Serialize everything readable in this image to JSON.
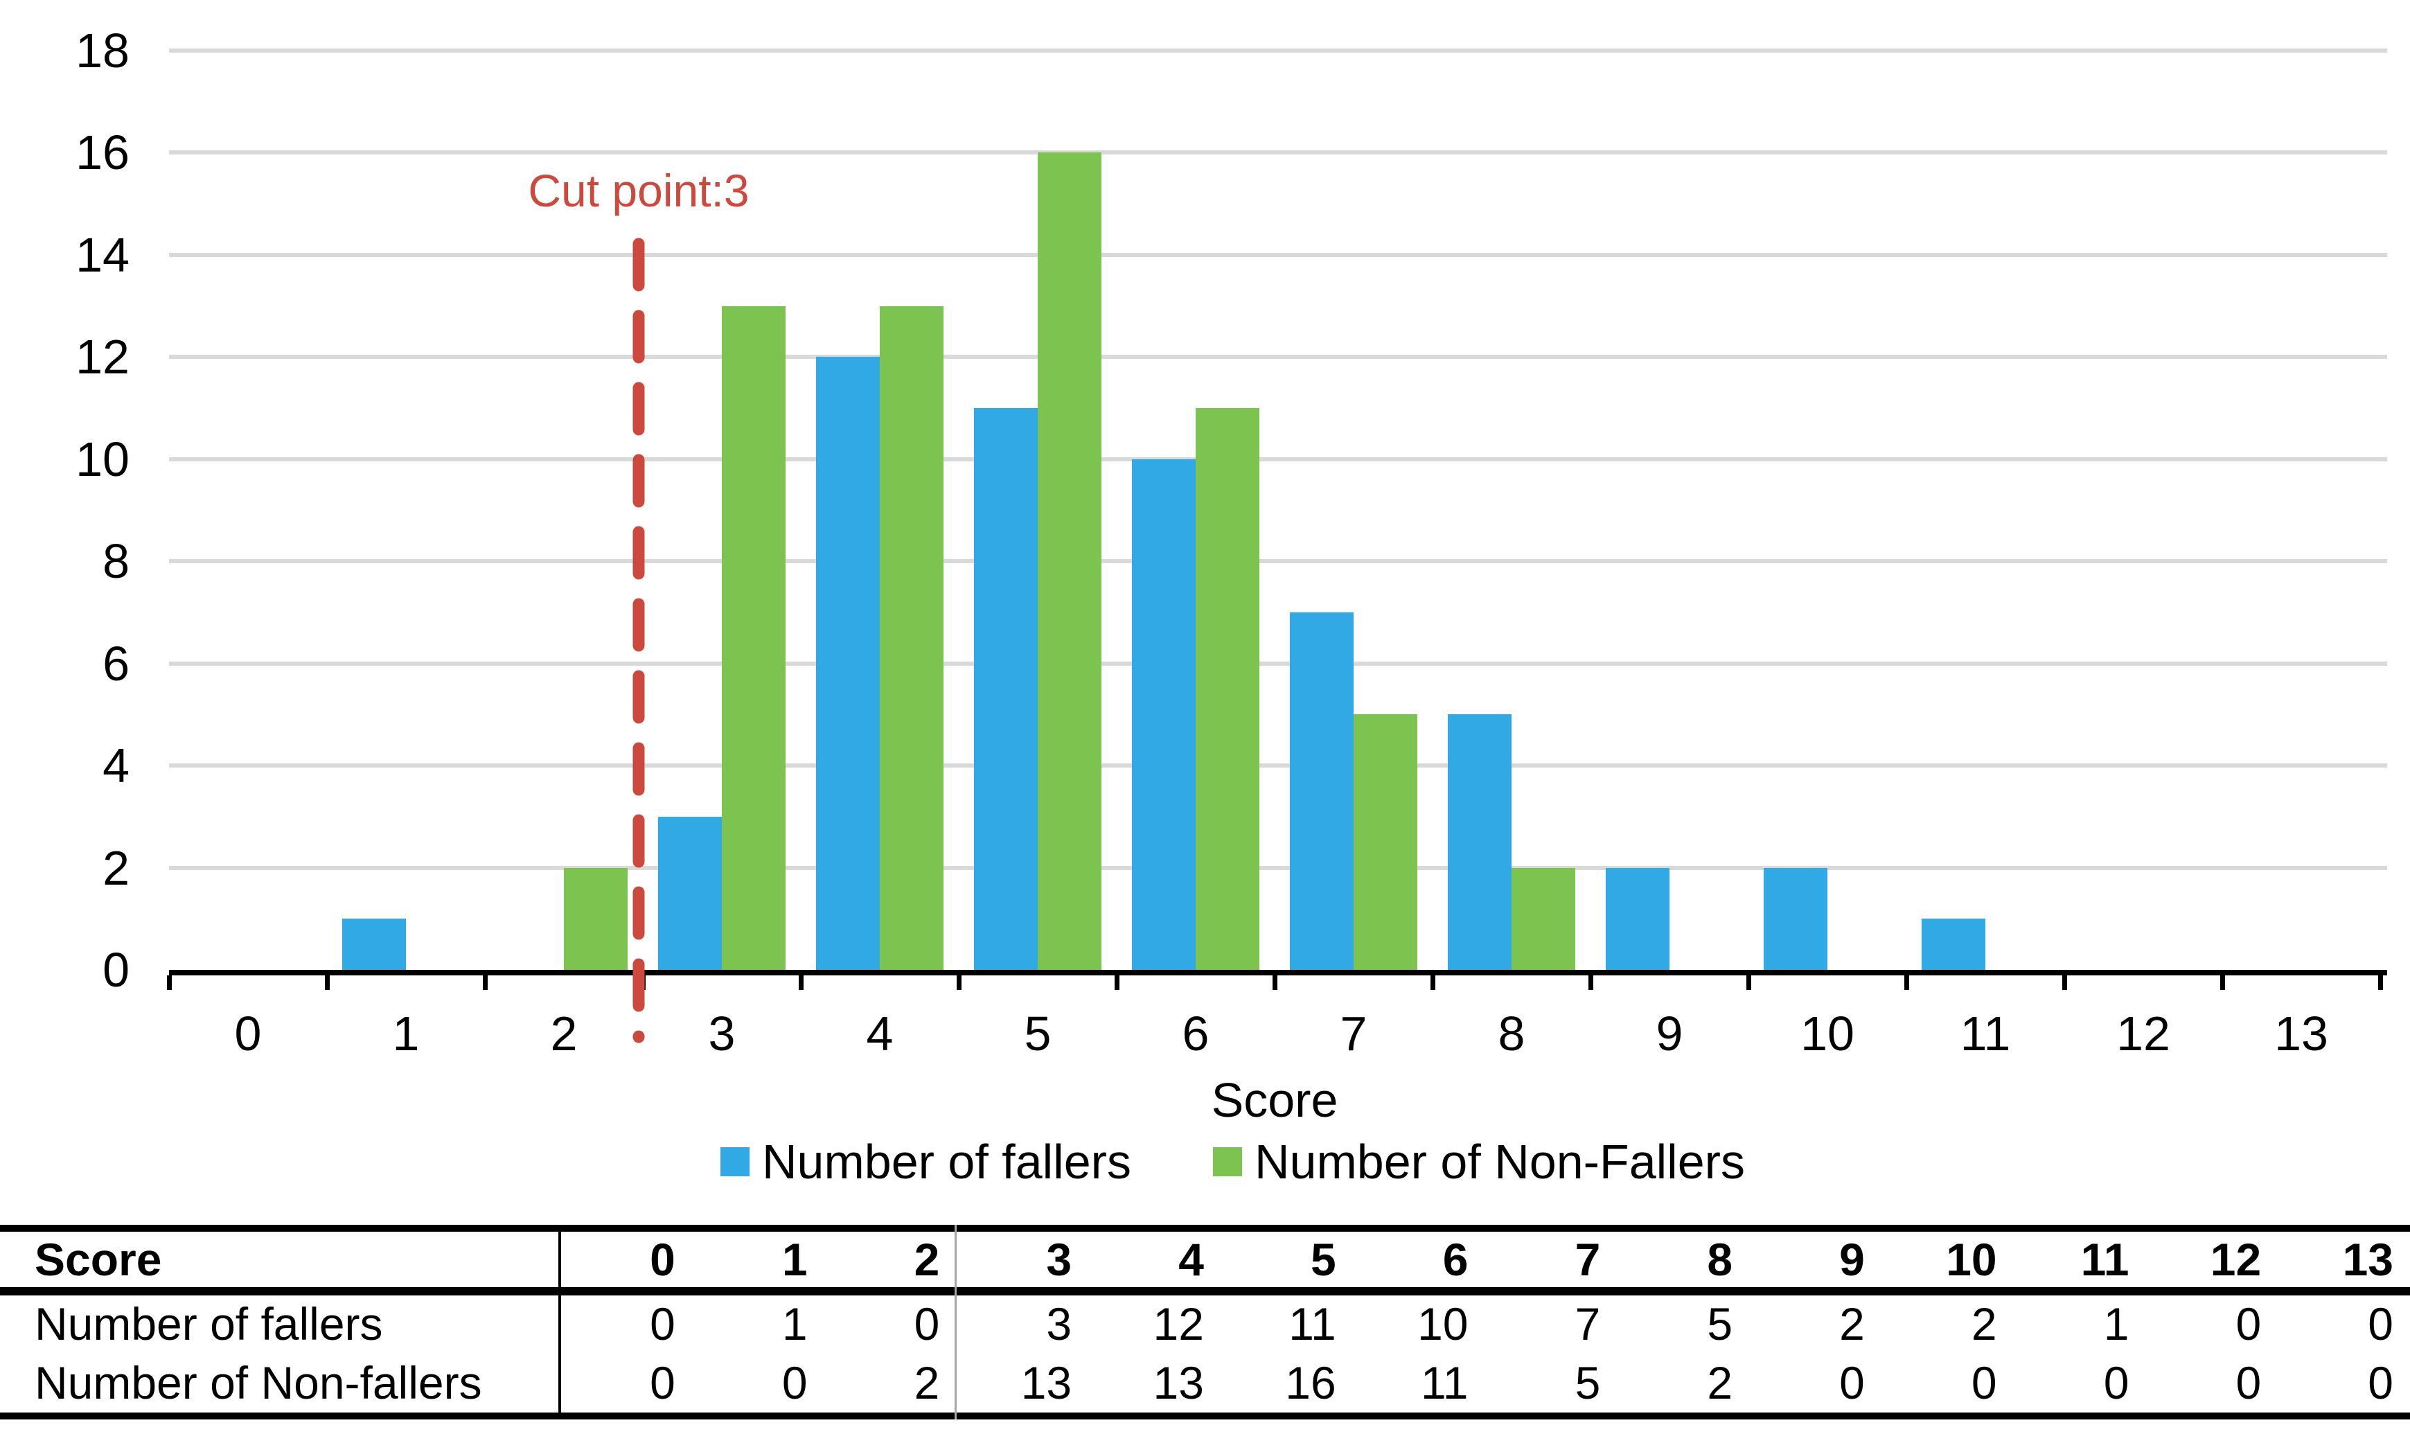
{
  "chart_data": {
    "type": "bar",
    "title": "",
    "categories": [
      "0",
      "1",
      "2",
      "3",
      "4",
      "5",
      "6",
      "7",
      "8",
      "9",
      "10",
      "11",
      "12",
      "13"
    ],
    "series": [
      {
        "name": "Number of fallers",
        "color": "#31A9E4",
        "values": [
          0,
          1,
          0,
          3,
          12,
          11,
          10,
          7,
          5,
          2,
          2,
          1,
          0,
          0
        ]
      },
      {
        "name": "Number of Non-Fallers",
        "color": "#7CC350",
        "values": [
          0,
          0,
          2,
          13,
          13,
          16,
          11,
          5,
          2,
          0,
          0,
          0,
          0,
          0
        ]
      }
    ],
    "xlabel": "Score",
    "ylabel": "",
    "ylim": [
      0,
      18
    ],
    "ytick_step": 2,
    "grid": true,
    "gridline_color": "#D9D9D9",
    "axis_color": "#000000",
    "legend_position": "bottom",
    "cut_line": {
      "label": "Cut point:3",
      "between_scores": [
        2,
        3
      ],
      "color": "#CC4A3D",
      "style": "dashed"
    }
  },
  "table": {
    "header": {
      "label": "Score",
      "values": [
        "0",
        "1",
        "2",
        "3",
        "4",
        "5",
        "6",
        "7",
        "8",
        "9",
        "10",
        "11",
        "12",
        "13"
      ]
    },
    "rows": [
      {
        "label": "Number of fallers",
        "values": [
          "0",
          "1",
          "0",
          "3",
          "12",
          "11",
          "10",
          "7",
          "5",
          "2",
          "2",
          "1",
          "0",
          "0"
        ]
      },
      {
        "label": "Number of Non-fallers",
        "values": [
          "0",
          "0",
          "2",
          "13",
          "13",
          "16",
          "11",
          "5",
          "2",
          "0",
          "0",
          "0",
          "0",
          "0"
        ]
      }
    ]
  }
}
